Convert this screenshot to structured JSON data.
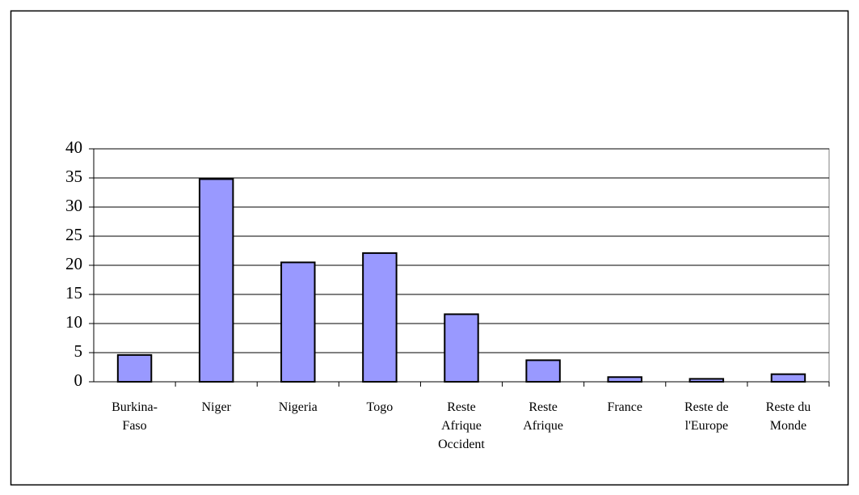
{
  "chart_data": {
    "type": "bar",
    "categories": [
      "Burkina-Faso",
      "Niger",
      "Nigeria",
      "Togo",
      "Reste Afrique Occident",
      "Reste Afrique",
      "France",
      "Reste de l'Europe",
      "Reste du Monde"
    ],
    "values": [
      4.6,
      34.8,
      20.5,
      22.1,
      11.6,
      3.7,
      0.8,
      0.5,
      1.3
    ],
    "color": "#9999ff",
    "ylim": [
      0,
      40
    ],
    "yticks": [
      0,
      5,
      10,
      15,
      20,
      25,
      30,
      35,
      40
    ],
    "grid": true
  }
}
